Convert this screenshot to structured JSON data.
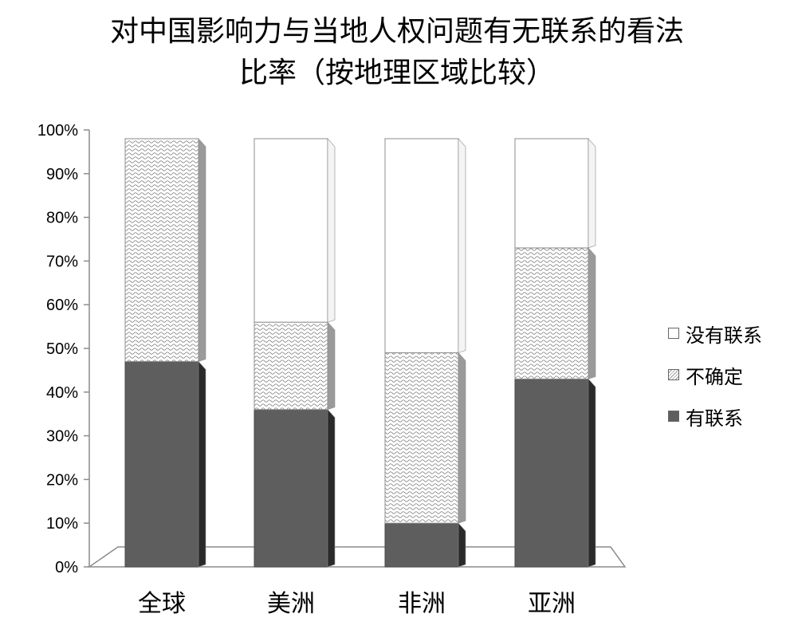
{
  "chart_data": {
    "type": "bar",
    "stacked": true,
    "title": "对中国影响力与当地人权问题有无联系的看法",
    "subtitle": "比率（按地理区域比较）",
    "categories": [
      "全球",
      "美洲",
      "非洲",
      "亚洲"
    ],
    "series": [
      {
        "name": "有联系",
        "values": [
          47,
          36,
          10,
          43
        ],
        "color": "#5e5e5e",
        "pattern": "solid"
      },
      {
        "name": "不确定",
        "values": [
          51,
          20,
          39,
          30
        ],
        "color": "#ffffff",
        "pattern": "wave"
      },
      {
        "name": "没有联系",
        "values": [
          0,
          42,
          49,
          25
        ],
        "color": "#ffffff",
        "pattern": "none"
      }
    ],
    "ylim": [
      0,
      100
    ],
    "yticks": [
      "0%",
      "10%",
      "20%",
      "30%",
      "40%",
      "50%",
      "60%",
      "70%",
      "80%",
      "90%",
      "100%"
    ],
    "grid": false,
    "legend_position": "right",
    "legend_order": [
      "没有联系",
      "不确定",
      "有联系"
    ]
  }
}
